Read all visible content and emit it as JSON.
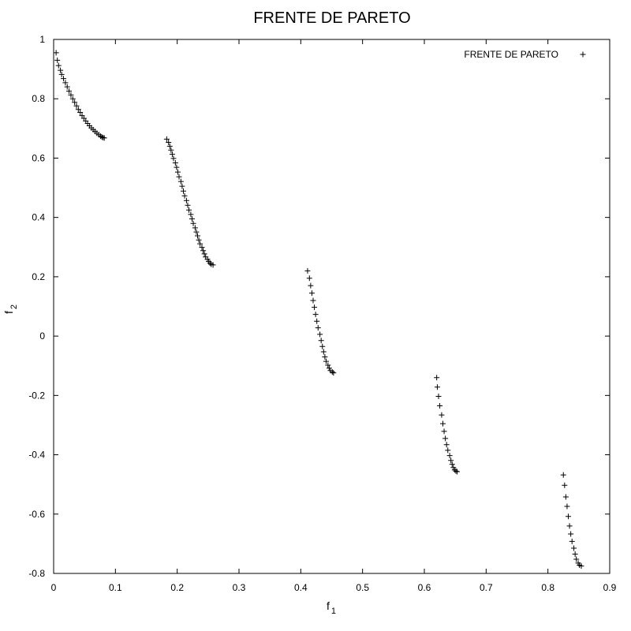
{
  "chart_data": {
    "type": "scatter",
    "title": "FRENTE DE PARETO",
    "xlabel": {
      "main": "f",
      "sub": "1"
    },
    "ylabel": {
      "main": "f",
      "sub": "2"
    },
    "xlim": [
      0,
      0.9
    ],
    "ylim": [
      -0.8,
      1
    ],
    "x_ticks": [
      "0",
      "0.1",
      "0.2",
      "0.3",
      "0.4",
      "0.5",
      "0.6",
      "0.7",
      "0.8",
      "0.9"
    ],
    "y_ticks": [
      "-0.8",
      "-0.6",
      "-0.4",
      "-0.2",
      "0",
      "0.2",
      "0.4",
      "0.6",
      "0.8",
      "1"
    ],
    "grid": false,
    "legend_position": "top-right",
    "series": [
      {
        "name": "FRENTE DE PARETO",
        "marker": "plus",
        "color": "#000000",
        "points": [
          [
            0.004,
            0.955
          ],
          [
            0.006,
            0.93
          ],
          [
            0.008,
            0.912
          ],
          [
            0.011,
            0.896
          ],
          [
            0.013,
            0.882
          ],
          [
            0.016,
            0.868
          ],
          [
            0.019,
            0.854
          ],
          [
            0.022,
            0.84
          ],
          [
            0.025,
            0.826
          ],
          [
            0.028,
            0.813
          ],
          [
            0.031,
            0.8
          ],
          [
            0.034,
            0.788
          ],
          [
            0.037,
            0.776
          ],
          [
            0.04,
            0.764
          ],
          [
            0.043,
            0.754
          ],
          [
            0.046,
            0.743
          ],
          [
            0.049,
            0.734
          ],
          [
            0.052,
            0.725
          ],
          [
            0.055,
            0.717
          ],
          [
            0.058,
            0.709
          ],
          [
            0.061,
            0.702
          ],
          [
            0.064,
            0.696
          ],
          [
            0.067,
            0.69
          ],
          [
            0.07,
            0.684
          ],
          [
            0.073,
            0.679
          ],
          [
            0.076,
            0.674
          ],
          [
            0.078,
            0.671
          ],
          [
            0.08,
            0.669
          ],
          [
            0.082,
            0.668
          ],
          [
            0.183,
            0.664
          ],
          [
            0.186,
            0.653
          ],
          [
            0.188,
            0.64
          ],
          [
            0.19,
            0.627
          ],
          [
            0.192,
            0.613
          ],
          [
            0.194,
            0.599
          ],
          [
            0.197,
            0.584
          ],
          [
            0.199,
            0.569
          ],
          [
            0.201,
            0.553
          ],
          [
            0.203,
            0.537
          ],
          [
            0.206,
            0.521
          ],
          [
            0.208,
            0.505
          ],
          [
            0.21,
            0.489
          ],
          [
            0.212,
            0.473
          ],
          [
            0.215,
            0.457
          ],
          [
            0.217,
            0.441
          ],
          [
            0.219,
            0.425
          ],
          [
            0.222,
            0.41
          ],
          [
            0.224,
            0.395
          ],
          [
            0.226,
            0.38
          ],
          [
            0.229,
            0.365
          ],
          [
            0.231,
            0.351
          ],
          [
            0.233,
            0.338
          ],
          [
            0.235,
            0.324
          ],
          [
            0.237,
            0.311
          ],
          [
            0.24,
            0.299
          ],
          [
            0.242,
            0.288
          ],
          [
            0.244,
            0.277
          ],
          [
            0.246,
            0.267
          ],
          [
            0.249,
            0.259
          ],
          [
            0.251,
            0.252
          ],
          [
            0.253,
            0.246
          ],
          [
            0.255,
            0.242
          ],
          [
            0.258,
            0.24
          ],
          [
            0.411,
            0.22
          ],
          [
            0.414,
            0.195
          ],
          [
            0.416,
            0.17
          ],
          [
            0.418,
            0.145
          ],
          [
            0.42,
            0.12
          ],
          [
            0.422,
            0.097
          ],
          [
            0.424,
            0.073
          ],
          [
            0.426,
            0.05
          ],
          [
            0.428,
            0.028
          ],
          [
            0.431,
            0.006
          ],
          [
            0.433,
            -0.015
          ],
          [
            0.435,
            -0.035
          ],
          [
            0.437,
            -0.053
          ],
          [
            0.439,
            -0.07
          ],
          [
            0.441,
            -0.085
          ],
          [
            0.444,
            -0.098
          ],
          [
            0.446,
            -0.108
          ],
          [
            0.448,
            -0.116
          ],
          [
            0.451,
            -0.121
          ],
          [
            0.453,
            -0.124
          ],
          [
            0.62,
            -0.14
          ],
          [
            0.621,
            -0.172
          ],
          [
            0.623,
            -0.203
          ],
          [
            0.625,
            -0.235
          ],
          [
            0.628,
            -0.266
          ],
          [
            0.63,
            -0.295
          ],
          [
            0.632,
            -0.321
          ],
          [
            0.634,
            -0.345
          ],
          [
            0.636,
            -0.366
          ],
          [
            0.638,
            -0.385
          ],
          [
            0.641,
            -0.403
          ],
          [
            0.643,
            -0.419
          ],
          [
            0.645,
            -0.432
          ],
          [
            0.647,
            -0.443
          ],
          [
            0.649,
            -0.451
          ],
          [
            0.651,
            -0.455
          ],
          [
            0.653,
            -0.457
          ],
          [
            0.825,
            -0.468
          ],
          [
            0.827,
            -0.503
          ],
          [
            0.829,
            -0.542
          ],
          [
            0.831,
            -0.574
          ],
          [
            0.833,
            -0.608
          ],
          [
            0.835,
            -0.64
          ],
          [
            0.837,
            -0.667
          ],
          [
            0.839,
            -0.692
          ],
          [
            0.842,
            -0.715
          ],
          [
            0.844,
            -0.735
          ],
          [
            0.846,
            -0.752
          ],
          [
            0.849,
            -0.765
          ],
          [
            0.851,
            -0.772
          ],
          [
            0.854,
            -0.775
          ]
        ]
      }
    ]
  }
}
